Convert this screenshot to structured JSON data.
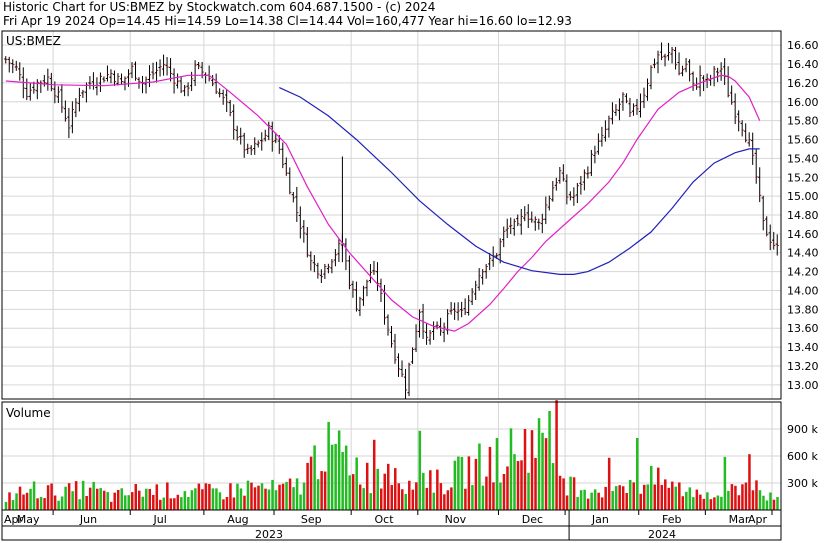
{
  "header": {
    "line1": "Historic Chart for US:BMEZ by Stockwatch.com 604.687.1500 - (c) 2024",
    "line2": "Fri Apr 19 2024   Op=14.45   Hi=14.59   Lo=14.38   Cl=14.44   Vol=160,477   Year hi=16.60   lo=12.93"
  },
  "chart_data": [
    {
      "type": "ohlc",
      "title": "US:BMEZ",
      "y_ticks": [
        "16.60",
        "16.40",
        "16.20",
        "16.00",
        "15.80",
        "15.60",
        "15.40",
        "15.20",
        "15.00",
        "14.80",
        "14.60",
        "14.40",
        "14.20",
        "14.00",
        "13.80",
        "13.60",
        "13.40",
        "13.20",
        "13.00"
      ],
      "ylim": [
        12.85,
        16.75
      ],
      "months": [
        "Apr",
        "May",
        "Jun",
        "Jul",
        "Aug",
        "Sep",
        "Oct",
        "Nov",
        "Dec",
        "Jan",
        "Feb",
        "Mar",
        "Apr"
      ],
      "years": [
        "2023",
        "2024"
      ],
      "grid": true,
      "anchors": [
        [
          0,
          16.45
        ],
        [
          3,
          16.35
        ],
        [
          6,
          16.1
        ],
        [
          9,
          16.2
        ],
        [
          12,
          16.25
        ],
        [
          15,
          16.05
        ],
        [
          18,
          15.75
        ],
        [
          21,
          16.1
        ],
        [
          24,
          16.2
        ],
        [
          27,
          16.25
        ],
        [
          30,
          16.3
        ],
        [
          33,
          16.2
        ],
        [
          36,
          16.35
        ],
        [
          39,
          16.2
        ],
        [
          42,
          16.3
        ],
        [
          45,
          16.4
        ],
        [
          48,
          16.25
        ],
        [
          51,
          16.1
        ],
        [
          54,
          16.35
        ],
        [
          57,
          16.3
        ],
        [
          60,
          16.15
        ],
        [
          63,
          15.95
        ],
        [
          66,
          15.65
        ],
        [
          69,
          15.45
        ],
        [
          72,
          15.55
        ],
        [
          75,
          15.7
        ],
        [
          78,
          15.5
        ],
        [
          81,
          15.1
        ],
        [
          84,
          14.7
        ],
        [
          87,
          14.3
        ],
        [
          90,
          14.2
        ],
        [
          93,
          14.35
        ],
        [
          96,
          14.5
        ],
        [
          98,
          14.1
        ],
        [
          100,
          13.85
        ],
        [
          102,
          14.0
        ],
        [
          104,
          14.2
        ],
        [
          106,
          14.1
        ],
        [
          108,
          13.75
        ],
        [
          110,
          13.45
        ],
        [
          112,
          13.2
        ],
        [
          114,
          12.99
        ],
        [
          116,
          13.4
        ],
        [
          118,
          13.8
        ],
        [
          120,
          13.45
        ],
        [
          122,
          13.6
        ],
        [
          124,
          13.55
        ],
        [
          126,
          13.7
        ],
        [
          128,
          13.8
        ],
        [
          130,
          13.75
        ],
        [
          132,
          13.9
        ],
        [
          134,
          14.1
        ],
        [
          136,
          14.25
        ],
        [
          138,
          14.3
        ],
        [
          140,
          14.4
        ],
        [
          142,
          14.6
        ],
        [
          144,
          14.7
        ],
        [
          146,
          14.65
        ],
        [
          148,
          14.85
        ],
        [
          150,
          14.75
        ],
        [
          152,
          14.7
        ],
        [
          154,
          14.9
        ],
        [
          156,
          15.1
        ],
        [
          158,
          15.25
        ],
        [
          160,
          15.0
        ],
        [
          162,
          15.0
        ],
        [
          164,
          15.15
        ],
        [
          166,
          15.3
        ],
        [
          168,
          15.5
        ],
        [
          170,
          15.6
        ],
        [
          172,
          15.8
        ],
        [
          174,
          15.9
        ],
        [
          176,
          16.05
        ],
        [
          178,
          15.85
        ],
        [
          180,
          15.95
        ],
        [
          182,
          16.1
        ],
        [
          184,
          16.35
        ],
        [
          186,
          16.5
        ],
        [
          188,
          16.45
        ],
        [
          190,
          16.55
        ],
        [
          192,
          16.3
        ],
        [
          194,
          16.4
        ],
        [
          196,
          16.15
        ],
        [
          198,
          16.25
        ],
        [
          200,
          16.2
        ],
        [
          202,
          16.3
        ],
        [
          204,
          16.35
        ],
        [
          206,
          16.1
        ],
        [
          208,
          15.9
        ],
        [
          210,
          15.75
        ],
        [
          212,
          15.55
        ],
        [
          214,
          15.2
        ],
        [
          216,
          14.7
        ],
        [
          218,
          14.55
        ],
        [
          220,
          14.44
        ]
      ],
      "ma_short": [
        [
          0,
          16.22
        ],
        [
          14,
          16.18
        ],
        [
          28,
          16.17
        ],
        [
          42,
          16.21
        ],
        [
          52,
          16.28
        ],
        [
          58,
          16.28
        ],
        [
          64,
          16.1
        ],
        [
          72,
          15.85
        ],
        [
          80,
          15.55
        ],
        [
          86,
          15.1
        ],
        [
          92,
          14.7
        ],
        [
          98,
          14.4
        ],
        [
          104,
          14.15
        ],
        [
          110,
          13.9
        ],
        [
          116,
          13.72
        ],
        [
          122,
          13.62
        ],
        [
          128,
          13.57
        ],
        [
          132,
          13.65
        ],
        [
          138,
          13.85
        ],
        [
          142,
          14.02
        ],
        [
          146,
          14.2
        ],
        [
          150,
          14.35
        ],
        [
          154,
          14.52
        ],
        [
          160,
          14.72
        ],
        [
          166,
          14.92
        ],
        [
          172,
          15.15
        ],
        [
          176,
          15.35
        ],
        [
          180,
          15.6
        ],
        [
          186,
          15.92
        ],
        [
          192,
          16.1
        ],
        [
          198,
          16.2
        ],
        [
          204,
          16.28
        ],
        [
          206,
          16.27
        ],
        [
          208,
          16.22
        ],
        [
          212,
          16.05
        ],
        [
          215,
          15.8
        ]
      ],
      "ma_long": [
        [
          78,
          16.15
        ],
        [
          84,
          16.05
        ],
        [
          92,
          15.85
        ],
        [
          100,
          15.6
        ],
        [
          110,
          15.25
        ],
        [
          118,
          14.95
        ],
        [
          126,
          14.7
        ],
        [
          134,
          14.47
        ],
        [
          142,
          14.3
        ],
        [
          150,
          14.21
        ],
        [
          158,
          14.17
        ],
        [
          162,
          14.17
        ],
        [
          166,
          14.2
        ],
        [
          172,
          14.3
        ],
        [
          178,
          14.45
        ],
        [
          184,
          14.62
        ],
        [
          190,
          14.87
        ],
        [
          196,
          15.15
        ],
        [
          202,
          15.35
        ],
        [
          208,
          15.46
        ],
        [
          212,
          15.5
        ],
        [
          215,
          15.5
        ]
      ]
    },
    {
      "type": "bar",
      "title": "Volume",
      "y_ticks": [
        "900 k",
        "600 k",
        "300 k"
      ],
      "tick_values": [
        900000,
        600000,
        300000
      ],
      "ylim": [
        0,
        1200000
      ],
      "series_colors": {
        "up": "#22bb22",
        "down": "#dd1111"
      },
      "volume_anchors": [
        [
          0,
          170
        ],
        [
          8,
          260
        ],
        [
          16,
          220
        ],
        [
          24,
          280
        ],
        [
          30,
          160
        ],
        [
          38,
          250
        ],
        [
          46,
          240
        ],
        [
          54,
          230
        ],
        [
          62,
          230
        ],
        [
          70,
          300
        ],
        [
          78,
          250
        ],
        [
          84,
          330
        ],
        [
          90,
          790
        ],
        [
          96,
          700
        ],
        [
          100,
          560
        ],
        [
          104,
          400
        ],
        [
          108,
          430
        ],
        [
          112,
          380
        ],
        [
          116,
          360
        ],
        [
          120,
          450
        ],
        [
          124,
          320
        ],
        [
          128,
          440
        ],
        [
          132,
          520
        ],
        [
          136,
          600
        ],
        [
          140,
          660
        ],
        [
          144,
          730
        ],
        [
          148,
          800
        ],
        [
          152,
          880
        ],
        [
          156,
          680
        ],
        [
          160,
          340
        ],
        [
          164,
          300
        ],
        [
          168,
          260
        ],
        [
          172,
          300
        ],
        [
          176,
          360
        ],
        [
          180,
          300
        ],
        [
          184,
          380
        ],
        [
          188,
          350
        ],
        [
          192,
          270
        ],
        [
          196,
          230
        ],
        [
          200,
          220
        ],
        [
          204,
          200
        ],
        [
          208,
          280
        ],
        [
          212,
          360
        ],
        [
          216,
          190
        ],
        [
          220,
          160
        ]
      ],
      "volume_spikes": [
        [
          105,
          780
        ],
        [
          118,
          880
        ],
        [
          140,
          800
        ],
        [
          148,
          900
        ],
        [
          152,
          1020
        ],
        [
          155,
          1100
        ],
        [
          157,
          1220
        ],
        [
          172,
          580
        ],
        [
          180,
          800
        ],
        [
          205,
          590
        ],
        [
          212,
          620
        ]
      ]
    }
  ]
}
